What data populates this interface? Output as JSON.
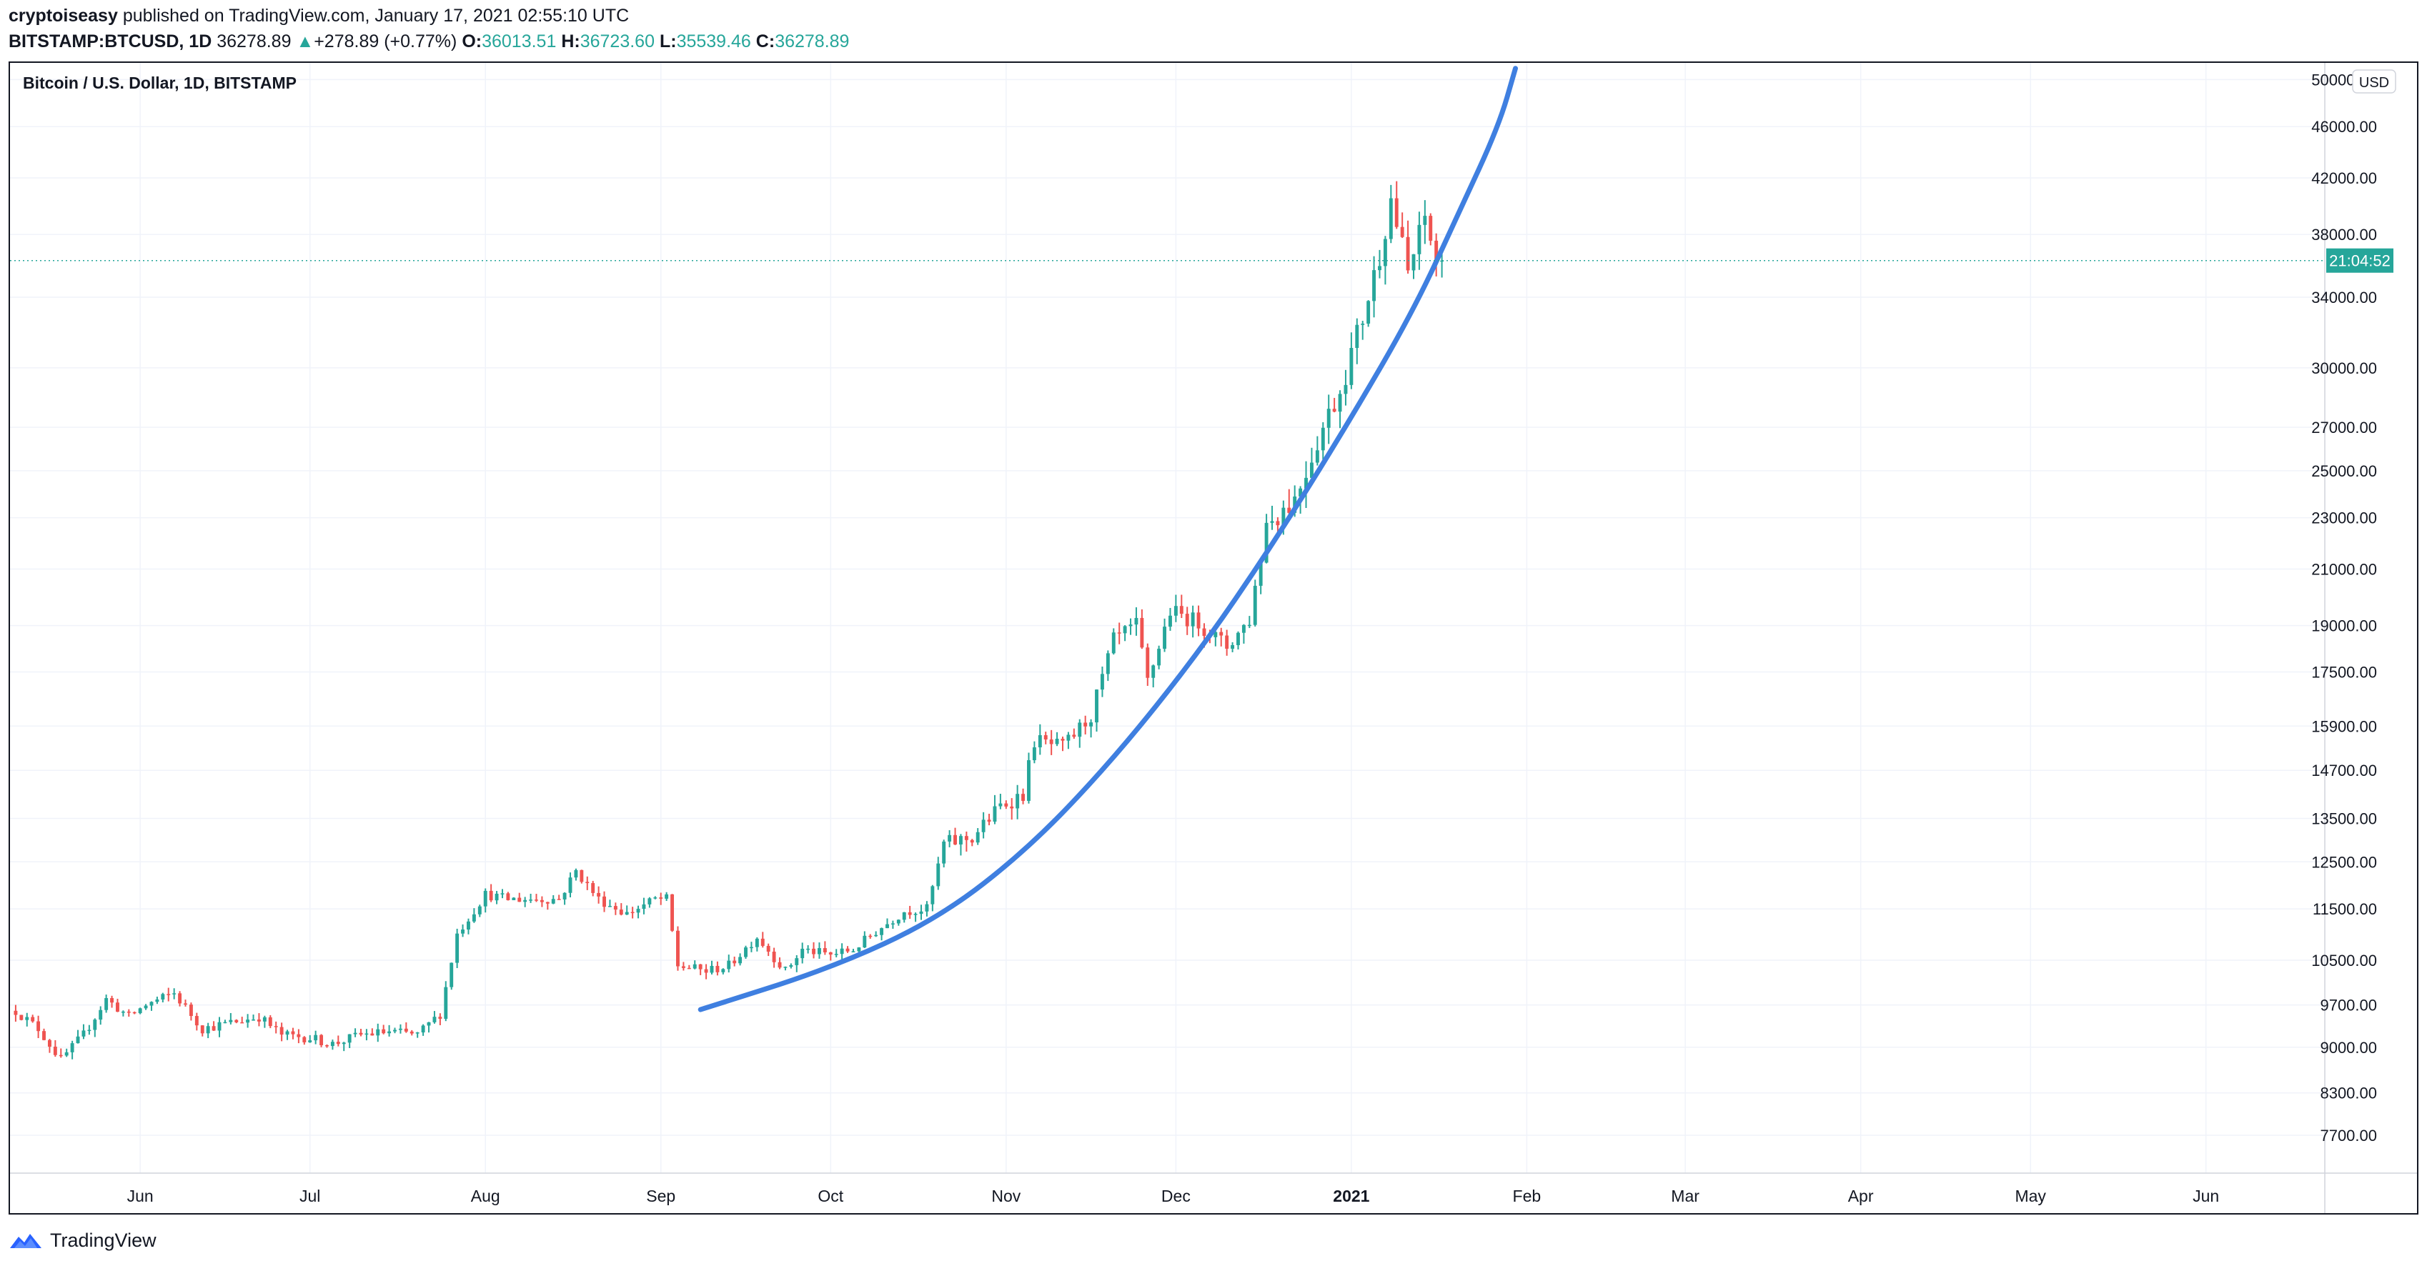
{
  "header": {
    "author": "cryptoiseasy",
    "published_text": " published on TradingView.com, January 17, 2021 02:55:10 UTC",
    "symbol": "BITSTAMP:BTCUSD, 1D",
    "last": "36278.89",
    "change_arrow": "▲",
    "change": "+278.89 (+0.77%)",
    "o_label": "O:",
    "open": "36013.51",
    "h_label": "H:",
    "high": "36723.60",
    "l_label": "L:",
    "low": "35539.46",
    "c_label": "C:",
    "close": "36278.89"
  },
  "footer": {
    "brand": "TradingView",
    "logo_icon": "tradingview-logo-icon"
  },
  "colors": {
    "up": "#26a69a",
    "down": "#ef5350",
    "curve": "#3f7fe0",
    "price_tag": "#26a69a"
  },
  "chart_data": {
    "type": "candlestick",
    "title": "Bitcoin / U.S. Dollar, 1D, BITSTAMP",
    "currency_badge": "USD",
    "price_scale": "log",
    "ylim": [
      7200,
      51500
    ],
    "y_ticks": [
      "46000.00",
      "42000.00",
      "38000.00",
      "34000.00",
      "30000.00",
      "27000.00",
      "25000.00",
      "23000.00",
      "21000.00",
      "19000.00",
      "17500.00",
      "15900.00",
      "14700.00",
      "13500.00",
      "12500.00",
      "11500.00",
      "10500.00",
      "9700.00",
      "9000.00",
      "8300.00",
      "7700.00"
    ],
    "top_tick_partial": "50000.00",
    "x_axis": [
      {
        "label": "Jun",
        "date": "2020-06-01",
        "bold": false
      },
      {
        "label": "Jul",
        "date": "2020-07-01",
        "bold": false
      },
      {
        "label": "Aug",
        "date": "2020-08-01",
        "bold": false
      },
      {
        "label": "Sep",
        "date": "2020-09-01",
        "bold": false
      },
      {
        "label": "Oct",
        "date": "2020-10-01",
        "bold": false
      },
      {
        "label": "Nov",
        "date": "2020-11-01",
        "bold": false
      },
      {
        "label": "Dec",
        "date": "2020-12-01",
        "bold": false
      },
      {
        "label": "2021",
        "date": "2021-01-01",
        "bold": true
      },
      {
        "label": "Feb",
        "date": "2021-02-01",
        "bold": false
      },
      {
        "label": "Mar",
        "date": "2021-03-01",
        "bold": false
      },
      {
        "label": "Apr",
        "date": "2021-04-01",
        "bold": false
      },
      {
        "label": "May",
        "date": "2021-05-01",
        "bold": false
      },
      {
        "label": "Jun",
        "date": "2021-06-01",
        "bold": false
      }
    ],
    "x_range": [
      "2020-05-09",
      "2021-06-22"
    ],
    "current_price": 36278.89,
    "countdown": "21:04:52",
    "close_path": [
      [
        "2020-05-10",
        9600
      ],
      [
        "2020-05-14",
        9300
      ],
      [
        "2020-05-18",
        8800
      ],
      [
        "2020-05-22",
        9200
      ],
      [
        "2020-05-26",
        9800
      ],
      [
        "2020-05-30",
        9500
      ],
      [
        "2020-06-02",
        9700
      ],
      [
        "2020-06-07",
        9900
      ],
      [
        "2020-06-12",
        9300
      ],
      [
        "2020-06-17",
        9400
      ],
      [
        "2020-06-22",
        9500
      ],
      [
        "2020-06-26",
        9200
      ],
      [
        "2020-07-01",
        9150
      ],
      [
        "2020-07-05",
        9050
      ],
      [
        "2020-07-10",
        9200
      ],
      [
        "2020-07-15",
        9250
      ],
      [
        "2020-07-20",
        9200
      ],
      [
        "2020-07-24",
        9550
      ],
      [
        "2020-07-27",
        11000
      ],
      [
        "2020-08-01",
        11800
      ],
      [
        "2020-08-05",
        11700
      ],
      [
        "2020-08-10",
        11700
      ],
      [
        "2020-08-14",
        11700
      ],
      [
        "2020-08-17",
        12300
      ],
      [
        "2020-08-21",
        11700
      ],
      [
        "2020-08-26",
        11400
      ],
      [
        "2020-08-31",
        11700
      ],
      [
        "2020-09-02",
        11700
      ],
      [
        "2020-09-04",
        10400
      ],
      [
        "2020-09-09",
        10300
      ],
      [
        "2020-09-13",
        10400
      ],
      [
        "2020-09-18",
        10950
      ],
      [
        "2020-09-23",
        10300
      ],
      [
        "2020-09-26",
        10700
      ],
      [
        "2020-10-01",
        10600
      ],
      [
        "2020-10-05",
        10700
      ],
      [
        "2020-10-09",
        11050
      ],
      [
        "2020-10-14",
        11450
      ],
      [
        "2020-10-18",
        11500
      ],
      [
        "2020-10-21",
        12900
      ],
      [
        "2020-10-26",
        13050
      ],
      [
        "2020-10-31",
        13800
      ],
      [
        "2020-11-04",
        14100
      ],
      [
        "2020-11-06",
        15500
      ],
      [
        "2020-11-11",
        15300
      ],
      [
        "2020-11-16",
        16200
      ],
      [
        "2020-11-20",
        18500
      ],
      [
        "2020-11-24",
        19000
      ],
      [
        "2020-11-26",
        17200
      ],
      [
        "2020-11-30",
        19500
      ],
      [
        "2020-12-05",
        19100
      ],
      [
        "2020-12-10",
        18300
      ],
      [
        "2020-12-14",
        19200
      ],
      [
        "2020-12-17",
        22800
      ],
      [
        "2020-12-22",
        23800
      ],
      [
        "2020-12-26",
        26400
      ],
      [
        "2020-12-30",
        28900
      ],
      [
        "2021-01-03",
        32800
      ],
      [
        "2021-01-06",
        36700
      ],
      [
        "2021-01-08",
        40500
      ],
      [
        "2021-01-11",
        35500
      ],
      [
        "2021-01-14",
        39100
      ],
      [
        "2021-01-16",
        36300
      ],
      [
        "2021-01-17",
        36278.89
      ]
    ],
    "annotation_curve": [
      [
        "2020-09-08",
        9620
      ],
      [
        "2020-10-01",
        10350
      ],
      [
        "2020-10-20",
        11300
      ],
      [
        "2020-11-05",
        12800
      ],
      [
        "2020-11-20",
        15000
      ],
      [
        "2020-12-05",
        18100
      ],
      [
        "2020-12-18",
        21900
      ],
      [
        "2020-12-31",
        27000
      ],
      [
        "2021-01-12",
        33200
      ],
      [
        "2021-01-20",
        39500
      ],
      [
        "2021-01-27",
        46000
      ],
      [
        "2021-01-30",
        51000
      ]
    ]
  }
}
